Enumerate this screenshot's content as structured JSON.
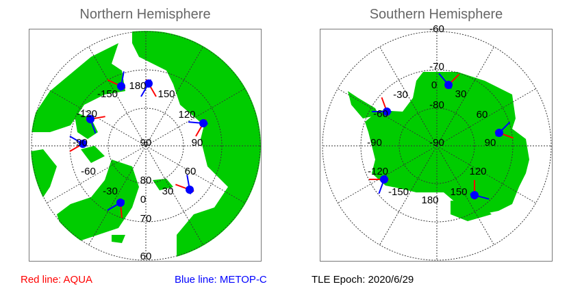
{
  "north": {
    "title": "Northern Hemisphere",
    "lat_labels": [
      "90",
      "80",
      "70",
      "60"
    ],
    "lon_labels": [
      "0",
      "30",
      "60",
      "90",
      "120",
      "150",
      "180",
      "-150",
      "-120",
      "-90",
      "-60",
      "-30"
    ]
  },
  "south": {
    "title": "Southern Hemisphere",
    "lat_labels": [
      "-90",
      "-80",
      "-70",
      "-60"
    ],
    "lon_labels": [
      "0",
      "30",
      "60",
      "90",
      "120",
      "150",
      "180",
      "-150",
      "-120",
      "-90",
      "-60",
      "-30"
    ]
  },
  "legend": {
    "red": "Red line: AQUA",
    "blue": "Blue line: METOP-C",
    "epoch": "TLE Epoch: 2020/6/29"
  },
  "colors": {
    "land": "#00cc00",
    "aqua": "#ff0000",
    "metop": "#0000ff",
    "grid": "#333333"
  }
}
